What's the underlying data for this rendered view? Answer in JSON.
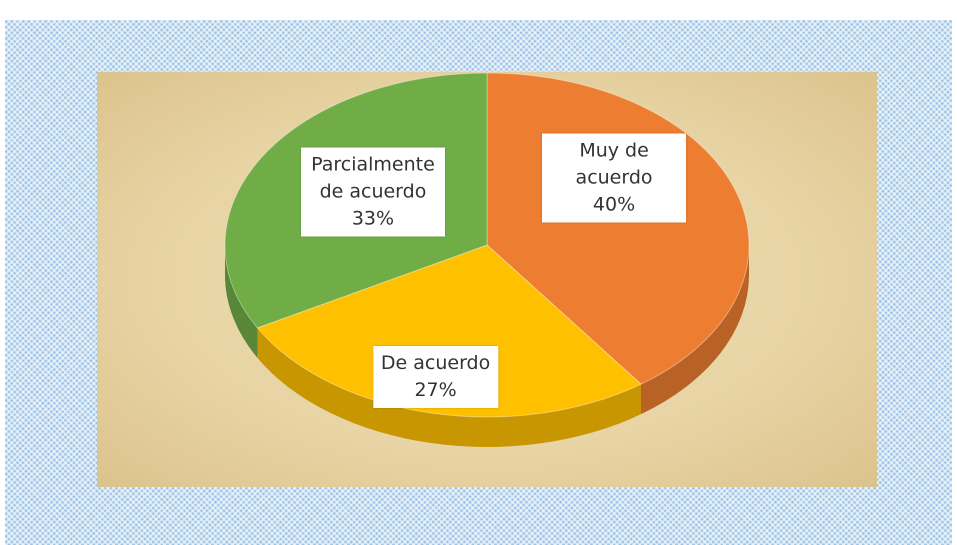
{
  "chart_data": {
    "type": "pie3d",
    "categories": [
      "Muy de acuerdo",
      "De acuerdo",
      "Parcialmente de acuerdo"
    ],
    "values": [
      40,
      27,
      33
    ],
    "value_labels": [
      "40%",
      "27%",
      "33%"
    ],
    "colors": [
      "#ed7d31",
      "#ffc000",
      "#70ad47"
    ]
  }
}
